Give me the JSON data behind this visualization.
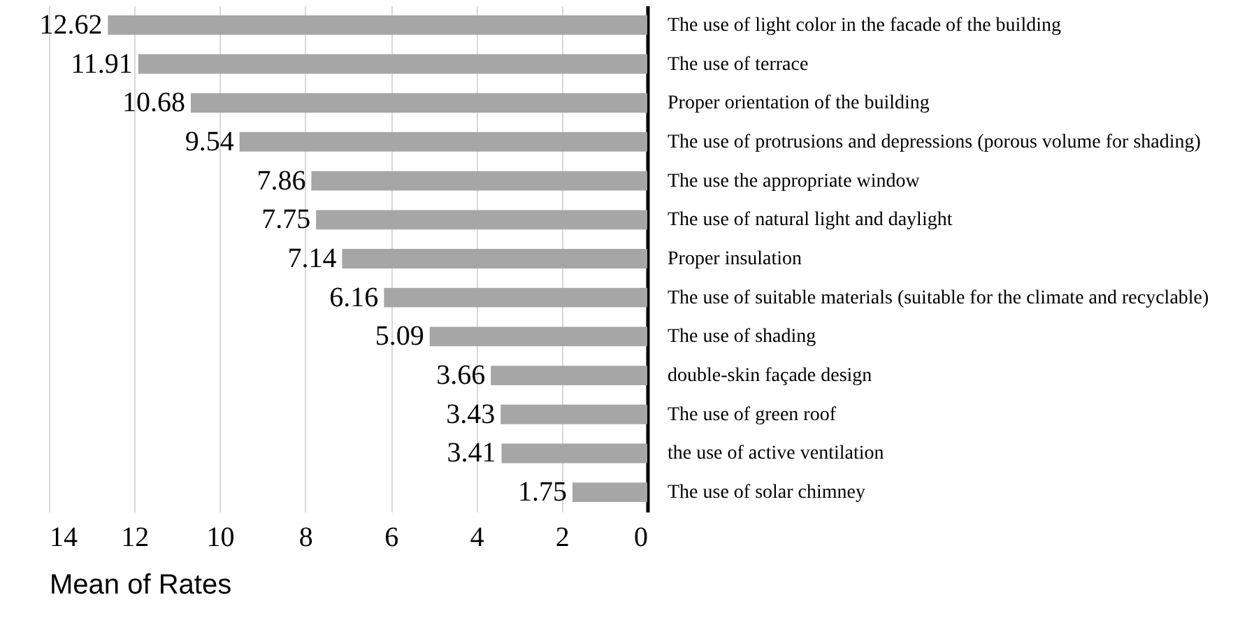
{
  "chart_data": {
    "type": "bar",
    "orientation": "horizontal",
    "xlabel": "Mean of Rates",
    "categories": [
      "The use of light color in the facade of the building",
      "The use of terrace",
      "Proper orientation of the building",
      "The use of protrusions and depressions (porous volume for shading)",
      "The use the appropriate window",
      "The use of natural light and daylight",
      "Proper insulation",
      "The use of suitable materials (suitable for the climate and recyclable)",
      "The use of shading",
      "double-skin façade design",
      "The use of green roof",
      "the use of active ventilation",
      "The use of solar chimney"
    ],
    "values": [
      12.62,
      11.91,
      10.68,
      9.54,
      7.86,
      7.75,
      7.14,
      6.16,
      5.09,
      3.66,
      3.43,
      3.41,
      1.75
    ],
    "color": "#a6a6a6",
    "xlim": [
      14,
      0
    ],
    "xticks": [
      14,
      12,
      10,
      8,
      6,
      4,
      2,
      0
    ],
    "grid": "x",
    "data_labels": true
  }
}
